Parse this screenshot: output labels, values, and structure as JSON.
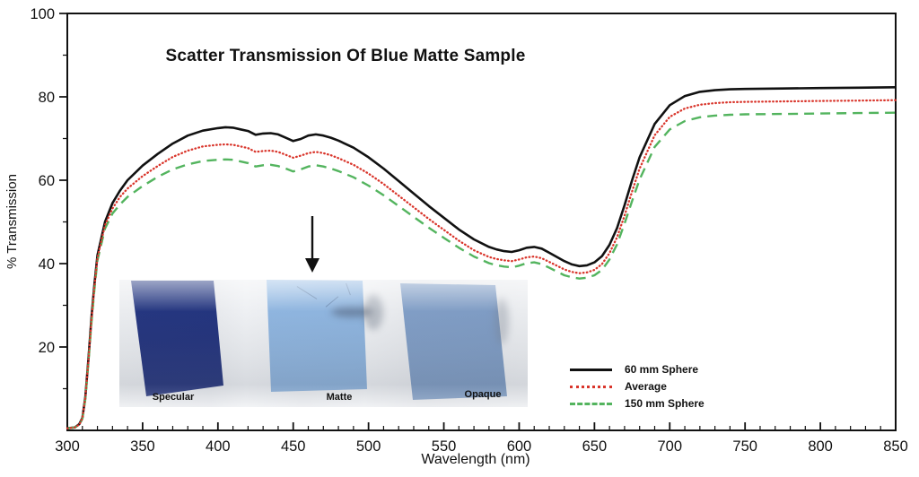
{
  "title": "Scatter Transmission Of Blue Matte Sample",
  "axes": {
    "xlabel": "Wavelength (nm)",
    "ylabel": "% Transmission",
    "xlim": [
      300,
      850
    ],
    "ylim": [
      0,
      100
    ],
    "x_ticks": [
      300,
      350,
      400,
      450,
      500,
      550,
      600,
      650,
      700,
      750,
      800,
      850
    ],
    "y_ticks": [
      20,
      40,
      60,
      80,
      100
    ],
    "x_minor_step": 10,
    "y_minor_step": 10
  },
  "legend": {
    "items": [
      {
        "label": "60 mm Sphere",
        "style": "solid",
        "color": "#111111"
      },
      {
        "label": "Average",
        "style": "dotted",
        "color": "#d9352b"
      },
      {
        "label": "150 mm Sphere",
        "style": "dashed",
        "color": "#53b45e"
      }
    ]
  },
  "inset": {
    "labels": [
      "Specular",
      "Matte",
      "Opaque"
    ],
    "sample_colors": {
      "specular": "#20307a",
      "matte": "#8fb5df",
      "opaque": "#7f9cc4"
    },
    "background": "#e8eaee"
  },
  "chart_data": {
    "type": "line",
    "title": "Scatter Transmission Of Blue Matte Sample",
    "xlabel": "Wavelength (nm)",
    "ylabel": "% Transmission",
    "xlim": [
      300,
      850
    ],
    "ylim": [
      0,
      100
    ],
    "grid": false,
    "legend_position": "lower right",
    "x": [
      300,
      305,
      308,
      310,
      312,
      314,
      316,
      318,
      320,
      325,
      330,
      335,
      340,
      350,
      360,
      370,
      380,
      390,
      400,
      405,
      410,
      415,
      420,
      425,
      430,
      435,
      440,
      445,
      450,
      455,
      460,
      465,
      470,
      475,
      480,
      490,
      500,
      510,
      520,
      530,
      540,
      550,
      560,
      570,
      580,
      585,
      590,
      595,
      600,
      605,
      610,
      615,
      620,
      630,
      635,
      640,
      645,
      650,
      655,
      660,
      665,
      670,
      675,
      680,
      690,
      700,
      710,
      720,
      730,
      740,
      750,
      775,
      800,
      825,
      850
    ],
    "series": [
      {
        "name": "60 mm Sphere",
        "color": "#111111",
        "style": "solid",
        "values": [
          0.5,
          0.7,
          1.5,
          3,
          8,
          17,
          27,
          35,
          42,
          50,
          54.5,
          57.5,
          60,
          63.5,
          66.3,
          68.8,
          70.7,
          71.9,
          72.5,
          72.7,
          72.6,
          72.2,
          71.8,
          70.9,
          71.2,
          71.3,
          71.0,
          70.2,
          69.4,
          69.9,
          70.7,
          71.0,
          70.7,
          70.2,
          69.5,
          67.8,
          65.5,
          62.8,
          59.8,
          56.8,
          53.8,
          51.0,
          48.2,
          45.8,
          44.0,
          43.4,
          43.0,
          42.8,
          43.2,
          43.8,
          44.0,
          43.6,
          42.6,
          40.6,
          39.8,
          39.4,
          39.6,
          40.3,
          41.8,
          44.5,
          48.5,
          54.0,
          60.0,
          65.5,
          73.5,
          78.0,
          80.2,
          81.2,
          81.6,
          81.8,
          81.9,
          82.0,
          82.1,
          82.2,
          82.3
        ]
      },
      {
        "name": "Average",
        "color": "#d9352b",
        "style": "dotted",
        "values": [
          0.5,
          0.7,
          1.4,
          2.9,
          7.8,
          16.6,
          26.4,
          34.4,
          41.4,
          49.2,
          53.2,
          56.0,
          58.0,
          61.0,
          63.4,
          65.6,
          67.1,
          68.1,
          68.5,
          68.6,
          68.5,
          68.1,
          67.7,
          66.8,
          67.0,
          67.1,
          66.8,
          66.1,
          65.4,
          65.9,
          66.5,
          66.8,
          66.5,
          66.0,
          65.3,
          63.7,
          61.6,
          59.1,
          56.3,
          53.5,
          50.7,
          48.1,
          45.5,
          43.2,
          41.6,
          41.1,
          40.8,
          40.6,
          41.0,
          41.5,
          41.7,
          41.3,
          40.4,
          38.6,
          38.0,
          37.7,
          37.9,
          38.5,
          39.9,
          42.5,
          46.3,
          51.5,
          57.3,
          62.8,
          70.8,
          75.2,
          77.2,
          78.1,
          78.5,
          78.7,
          78.8,
          78.9,
          79.0,
          79.1,
          79.2
        ]
      },
      {
        "name": "150 mm Sphere",
        "color": "#53b45e",
        "style": "dashed",
        "values": [
          0.5,
          0.7,
          1.3,
          2.8,
          7.5,
          16.2,
          25.8,
          33.8,
          40.8,
          48.4,
          52.0,
          54.2,
          56.0,
          58.6,
          60.8,
          62.6,
          63.8,
          64.6,
          64.9,
          65.0,
          64.9,
          64.5,
          64.1,
          63.3,
          63.6,
          63.7,
          63.4,
          62.8,
          62.1,
          62.6,
          63.3,
          63.6,
          63.3,
          62.8,
          62.2,
          60.7,
          58.7,
          56.4,
          53.8,
          51.2,
          48.6,
          46.2,
          43.8,
          41.7,
          40.1,
          39.6,
          39.3,
          39.1,
          39.5,
          40.1,
          40.3,
          39.9,
          39.0,
          37.2,
          36.7,
          36.4,
          36.6,
          37.2,
          38.5,
          41.0,
          44.6,
          49.6,
          55.0,
          60.2,
          68.0,
          72.2,
          74.2,
          75.1,
          75.5,
          75.7,
          75.8,
          75.9,
          76.0,
          76.1,
          76.2
        ]
      }
    ]
  }
}
